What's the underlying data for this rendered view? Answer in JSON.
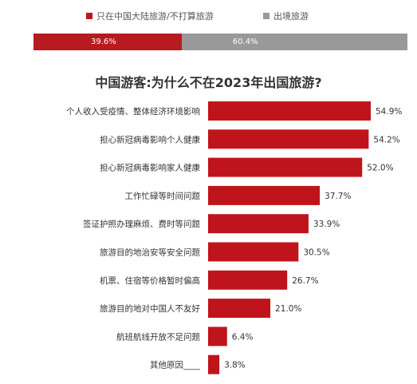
{
  "legend": {
    "items": [
      {
        "label": "只在中国大陆旅游/不打算旅游",
        "color": "#c0141c"
      },
      {
        "label": "出境旅游",
        "color": "#999999"
      }
    ]
  },
  "stacked_bar": {
    "segments": [
      {
        "label": "39.6%",
        "value": 39.6,
        "color": "#b81b1f"
      },
      {
        "label": "60.4%",
        "value": 60.4,
        "color": "#999999"
      }
    ]
  },
  "chart_data": {
    "type": "bar",
    "orientation": "horizontal",
    "title": "中国游客:为什么不在2023年出国旅游?",
    "categories": [
      "个人收入受疫情、整体经济环境影响",
      "担心新冠病毒影响个人健康",
      "担心新冠病毒影响家人健康",
      "工作忙碌等时间问题",
      "签证护照办理麻烦、费时等问题",
      "旅游目的地治安等安全问题",
      "机票、住宿等价格暂时偏高",
      "旅游目的地对中国人不友好",
      "航班航线开放不足问题",
      "其他原因____"
    ],
    "values": [
      54.9,
      54.2,
      52.0,
      37.7,
      33.9,
      30.5,
      26.7,
      21.0,
      6.4,
      3.8
    ],
    "value_labels": [
      "54.9%",
      "54.2%",
      "52.0%",
      "37.7%",
      "33.9%",
      "30.5%",
      "26.7%",
      "21.0%",
      "6.4%",
      "3.8%"
    ],
    "xlim": [
      0,
      54.9
    ],
    "bar_color": "#c0141c",
    "grid": false
  }
}
